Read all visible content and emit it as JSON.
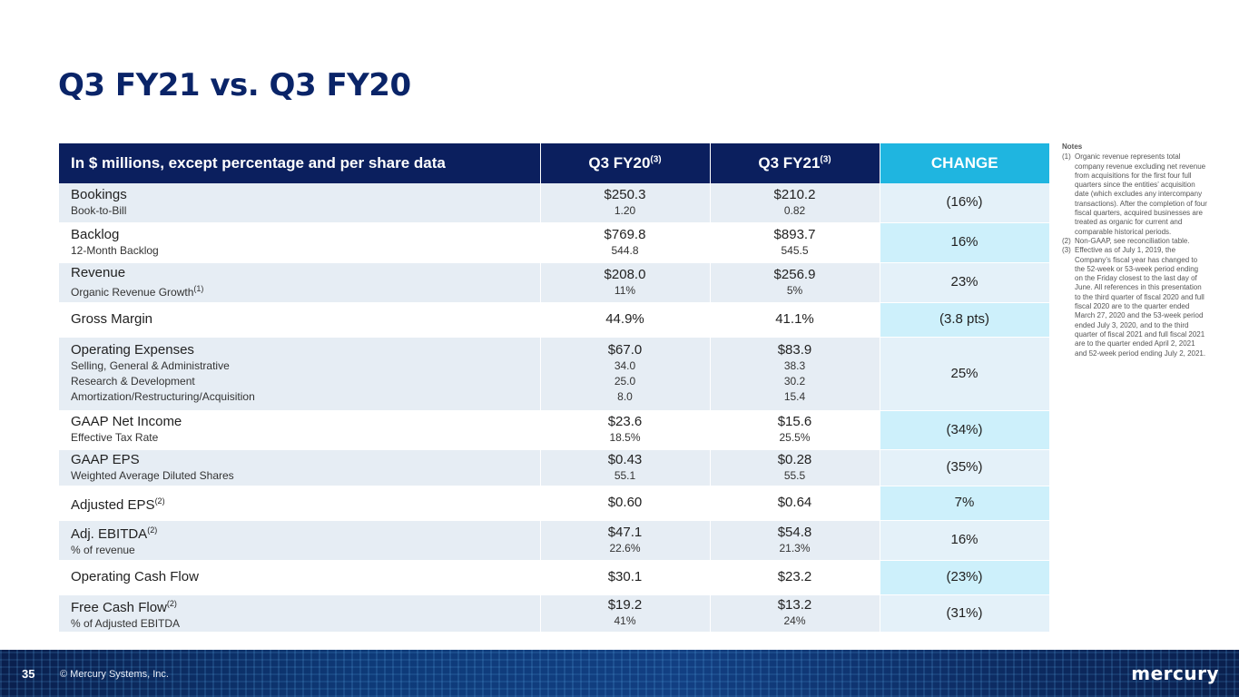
{
  "title": "Q3 FY21 vs. Q3 FY20",
  "table": {
    "headers": {
      "label": "In $ millions, except percentage and per share data",
      "q3fy20": "Q3 FY20",
      "q3fy20_note": "(3)",
      "q3fy21": "Q3 FY21",
      "q3fy21_note": "(3)",
      "change": "CHANGE"
    },
    "rows": [
      {
        "label": "Bookings",
        "sub": [
          "Book-to-Bill"
        ],
        "fy20": "$250.3",
        "fy20_sub": [
          "1.20"
        ],
        "fy21": "$210.2",
        "fy21_sub": [
          "0.82"
        ],
        "change": "(16%)"
      },
      {
        "label": "Backlog",
        "sub": [
          "12-Month Backlog"
        ],
        "fy20": "$769.8",
        "fy20_sub": [
          "544.8"
        ],
        "fy21": "$893.7",
        "fy21_sub": [
          "545.5"
        ],
        "change": "16%"
      },
      {
        "label": "Revenue",
        "sub": [
          "Organic Revenue Growth"
        ],
        "sub_note": "(1)",
        "fy20": "$208.0",
        "fy20_sub": [
          "11%"
        ],
        "fy21": "$256.9",
        "fy21_sub": [
          "5%"
        ],
        "change": "23%"
      },
      {
        "label": "Gross Margin",
        "sub": [],
        "fy20": "44.9%",
        "fy20_sub": [],
        "fy21": "41.1%",
        "fy21_sub": [],
        "change": "(3.8 pts)"
      },
      {
        "label": "Operating Expenses",
        "sub": [
          "Selling, General & Administrative",
          "Research & Development",
          "Amortization/Restructuring/Acquisition"
        ],
        "fy20": "$67.0",
        "fy20_sub": [
          "34.0",
          "25.0",
          "8.0"
        ],
        "fy21": "$83.9",
        "fy21_sub": [
          "38.3",
          "30.2",
          "15.4"
        ],
        "change": "25%"
      },
      {
        "label": "GAAP Net Income",
        "sub": [
          "Effective Tax Rate"
        ],
        "fy20": "$23.6",
        "fy20_sub": [
          "18.5%"
        ],
        "fy21": "$15.6",
        "fy21_sub": [
          "25.5%"
        ],
        "change": "(34%)"
      },
      {
        "label": "GAAP EPS",
        "sub": [
          "Weighted Average Diluted Shares"
        ],
        "fy20": "$0.43",
        "fy20_sub": [
          "55.1"
        ],
        "fy21": "$0.28",
        "fy21_sub": [
          "55.5"
        ],
        "change": "(35%)"
      },
      {
        "label": "Adjusted EPS",
        "label_note": "(2)",
        "sub": [],
        "fy20": "$0.60",
        "fy20_sub": [],
        "fy21": "$0.64",
        "fy21_sub": [],
        "change": "7%"
      },
      {
        "label": "Adj. EBITDA",
        "label_note": "(2)",
        "sub": [
          "% of revenue"
        ],
        "fy20": "$47.1",
        "fy20_sub": [
          "22.6%"
        ],
        "fy21": "$54.8",
        "fy21_sub": [
          "21.3%"
        ],
        "change": "16%"
      },
      {
        "label": "Operating Cash Flow",
        "sub": [],
        "fy20": "$30.1",
        "fy20_sub": [],
        "fy21": "$23.2",
        "fy21_sub": [],
        "change": "(23%)"
      },
      {
        "label": "Free Cash Flow",
        "label_note": "(2)",
        "sub": [
          "% of Adjusted EBITDA"
        ],
        "fy20": "$19.2",
        "fy20_sub": [
          "41%"
        ],
        "fy21": "$13.2",
        "fy21_sub": [
          "24%"
        ],
        "change": "(31%)"
      }
    ]
  },
  "notes": {
    "title": "Notes",
    "items": [
      {
        "num": "(1)",
        "text": "Organic revenue represents total company revenue excluding net revenue from acquisitions for the first four full quarters since the entities’ acquisition date (which excludes any intercompany transactions). After the completion of four fiscal quarters, acquired businesses are treated as organic for current and comparable historical periods."
      },
      {
        "num": "(2)",
        "text": "Non-GAAP, see reconciliation table."
      },
      {
        "num": "(3)",
        "text": "Effective as of July 1, 2019, the Company’s fiscal year has changed to the 52-week or 53-week period ending on the Friday closest to the last day of June. All references in this presentation to the third quarter of fiscal 2020 and full fiscal 2020 are to the quarter ended March 27, 2020 and the 53-week period ended July 3, 2020, and to the third quarter of fiscal 2021 and full fiscal 2021 are to the quarter ended April 2, 2021 and 52-week period ending July 2, 2021."
      }
    ]
  },
  "footer": {
    "page": "35",
    "copyright": "© Mercury Systems, Inc.",
    "logo": "mercury"
  },
  "colors": {
    "title": "#0a2468",
    "header_bg": "#0b1f5e",
    "change_header_bg": "#1fb5e0",
    "row_alt": "#e6edf4",
    "change_cell": "#cdf0fb"
  }
}
